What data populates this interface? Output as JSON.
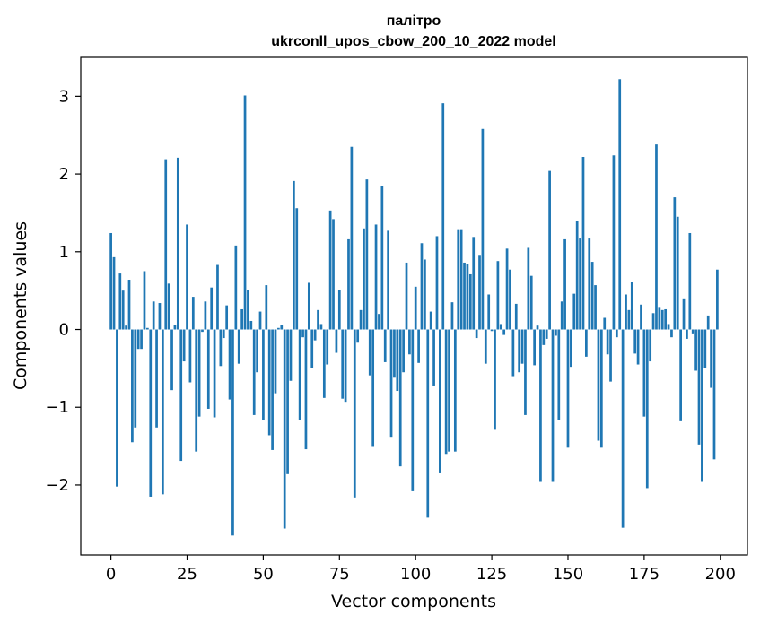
{
  "chart_data": {
    "type": "bar",
    "title": "палітро",
    "subtitle": "ukrconll_upos_cbow_200_10_2022 model",
    "xlabel": "Vector components",
    "ylabel": "Components values",
    "xlim": [
      -9.9,
      208.9
    ],
    "ylim": [
      -2.9,
      3.5
    ],
    "xticks": [
      0,
      25,
      50,
      75,
      100,
      125,
      150,
      175,
      200
    ],
    "xtick_labels": [
      "0",
      "25",
      "50",
      "75",
      "100",
      "125",
      "150",
      "175",
      "200"
    ],
    "yticks": [
      -2,
      -1,
      0,
      1,
      2,
      3
    ],
    "ytick_labels": [
      "−2",
      "−1",
      "0",
      "1",
      "2",
      "3"
    ],
    "grid": false,
    "bar_color": "#1f77b4",
    "x": [
      0,
      1,
      2,
      3,
      4,
      5,
      6,
      7,
      8,
      9,
      10,
      11,
      12,
      13,
      14,
      15,
      16,
      17,
      18,
      19,
      20,
      21,
      22,
      23,
      24,
      25,
      26,
      27,
      28,
      29,
      30,
      31,
      32,
      33,
      34,
      35,
      36,
      37,
      38,
      39,
      40,
      41,
      42,
      43,
      44,
      45,
      46,
      47,
      48,
      49,
      50,
      51,
      52,
      53,
      54,
      55,
      56,
      57,
      58,
      59,
      60,
      61,
      62,
      63,
      64,
      65,
      66,
      67,
      68,
      69,
      70,
      71,
      72,
      73,
      74,
      75,
      76,
      77,
      78,
      79,
      80,
      81,
      82,
      83,
      84,
      85,
      86,
      87,
      88,
      89,
      90,
      91,
      92,
      93,
      94,
      95,
      96,
      97,
      98,
      99,
      100,
      101,
      102,
      103,
      104,
      105,
      106,
      107,
      108,
      109,
      110,
      111,
      112,
      113,
      114,
      115,
      116,
      117,
      118,
      119,
      120,
      121,
      122,
      123,
      124,
      125,
      126,
      127,
      128,
      129,
      130,
      131,
      132,
      133,
      134,
      135,
      136,
      137,
      138,
      139,
      140,
      141,
      142,
      143,
      144,
      145,
      146,
      147,
      148,
      149,
      150,
      151,
      152,
      153,
      154,
      155,
      156,
      157,
      158,
      159,
      160,
      161,
      162,
      163,
      164,
      165,
      166,
      167,
      168,
      169,
      170,
      171,
      172,
      173,
      174,
      175,
      176,
      177,
      178,
      179,
      180,
      181,
      182,
      183,
      184,
      185,
      186,
      187,
      188,
      189,
      190,
      191,
      192,
      193,
      194,
      195,
      196,
      197,
      198,
      199
    ],
    "values": [
      1.24,
      0.93,
      -2.02,
      0.72,
      0.5,
      0.05,
      0.64,
      -1.45,
      -1.26,
      -0.25,
      -0.25,
      0.75,
      0.02,
      -2.15,
      0.36,
      -1.26,
      0.34,
      -2.12,
      2.19,
      0.59,
      -0.78,
      0.06,
      2.21,
      -1.69,
      -0.41,
      1.35,
      -0.68,
      0.42,
      -1.57,
      -1.12,
      -0.03,
      0.36,
      -1.02,
      0.54,
      -1.13,
      0.83,
      -0.47,
      -0.11,
      0.31,
      -0.9,
      -2.65,
      1.08,
      -0.44,
      0.26,
      3.01,
      0.51,
      0.11,
      -1.1,
      -0.55,
      0.23,
      -1.17,
      0.57,
      -1.36,
      -1.55,
      -0.82,
      0.02,
      0.06,
      -2.56,
      -1.86,
      -0.66,
      1.91,
      1.56,
      -1.17,
      -0.1,
      -1.54,
      0.6,
      -0.49,
      -0.14,
      0.25,
      0.07,
      -0.88,
      -0.45,
      1.53,
      1.42,
      -0.3,
      0.51,
      -0.89,
      -0.93,
      1.16,
      2.35,
      -2.16,
      -0.17,
      0.25,
      1.3,
      1.93,
      -0.59,
      -1.51,
      1.35,
      0.2,
      1.85,
      -0.42,
      1.27,
      -1.38,
      -0.62,
      -0.79,
      -1.76,
      -0.55,
      0.86,
      -0.32,
      -2.08,
      0.55,
      -0.43,
      1.11,
      0.9,
      -2.42,
      0.23,
      -0.72,
      1.2,
      -1.85,
      2.91,
      -1.6,
      -1.57,
      0.35,
      -1.57,
      1.29,
      1.29,
      0.86,
      0.84,
      0.71,
      1.19,
      -0.11,
      0.96,
      2.58,
      -0.44,
      0.45,
      -0.02,
      -1.29,
      0.88,
      0.07,
      -0.07,
      1.04,
      0.77,
      -0.6,
      0.33,
      -0.55,
      -0.44,
      -1.1,
      1.05,
      0.69,
      -0.46,
      0.05,
      -1.96,
      -0.2,
      -0.12,
      2.04,
      -1.96,
      -0.08,
      -1.16,
      0.36,
      1.16,
      -1.52,
      -0.48,
      0.46,
      1.4,
      1.17,
      2.22,
      -0.35,
      1.17,
      0.87,
      0.57,
      -1.43,
      -1.52,
      0.15,
      -0.32,
      -0.67,
      2.24,
      -0.1,
      3.22,
      -2.55,
      0.45,
      0.25,
      0.61,
      -0.31,
      -0.45,
      0.32,
      -1.12,
      -2.04,
      -0.41,
      0.21,
      2.38,
      0.29,
      0.25,
      0.26,
      0.07,
      -0.1,
      1.7,
      1.45,
      -1.18,
      0.4,
      -0.12,
      1.24,
      -0.05,
      -0.53,
      -1.48,
      -1.96,
      -0.49,
      0.18,
      -0.75,
      -1.67,
      0.77
    ]
  }
}
